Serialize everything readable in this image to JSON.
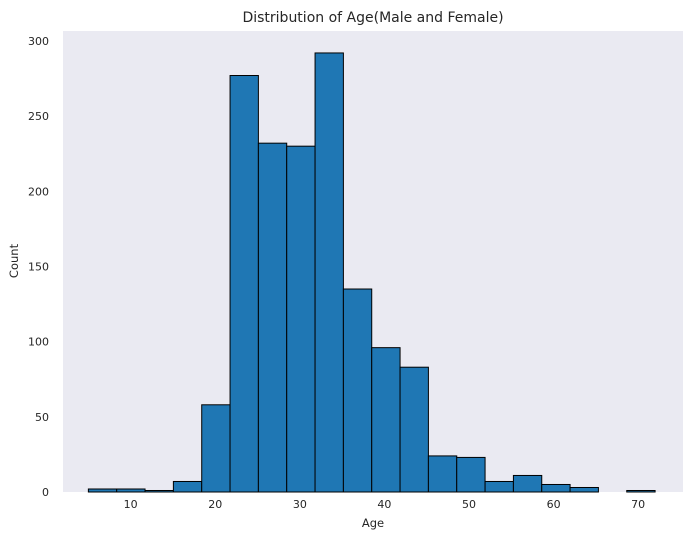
{
  "chart_data": {
    "type": "bar",
    "title": "Distribution of Age(Male and Female)",
    "xlabel": "Age",
    "ylabel": "Count",
    "bins": [
      {
        "start": 5.0,
        "end": 8.35,
        "count": 2
      },
      {
        "start": 8.35,
        "end": 11.7,
        "count": 2
      },
      {
        "start": 11.7,
        "end": 15.05,
        "count": 1
      },
      {
        "start": 15.05,
        "end": 18.4,
        "count": 7
      },
      {
        "start": 18.4,
        "end": 21.75,
        "count": 58
      },
      {
        "start": 21.75,
        "end": 25.1,
        "count": 277
      },
      {
        "start": 25.1,
        "end": 28.45,
        "count": 232
      },
      {
        "start": 28.45,
        "end": 31.8,
        "count": 230
      },
      {
        "start": 31.8,
        "end": 35.15,
        "count": 292
      },
      {
        "start": 35.15,
        "end": 38.5,
        "count": 135
      },
      {
        "start": 38.5,
        "end": 41.85,
        "count": 96
      },
      {
        "start": 41.85,
        "end": 45.2,
        "count": 83
      },
      {
        "start": 45.2,
        "end": 48.55,
        "count": 24
      },
      {
        "start": 48.55,
        "end": 51.9,
        "count": 23
      },
      {
        "start": 51.9,
        "end": 55.25,
        "count": 7
      },
      {
        "start": 55.25,
        "end": 58.6,
        "count": 11
      },
      {
        "start": 58.6,
        "end": 61.95,
        "count": 5
      },
      {
        "start": 61.95,
        "end": 65.3,
        "count": 3
      },
      {
        "start": 65.3,
        "end": 68.65,
        "count": 0
      },
      {
        "start": 68.65,
        "end": 72.0,
        "count": 1
      }
    ],
    "xlim": [
      2.0,
      75.3
    ],
    "ylim": [
      0,
      306.6
    ],
    "xticks": [
      10,
      20,
      30,
      40,
      50,
      60,
      70
    ],
    "yticks": [
      0,
      50,
      100,
      150,
      200,
      250,
      300
    ],
    "grid": false,
    "bar_color": "#1f77b4",
    "edge_color": "#000000",
    "background_color": "#eaeaf2"
  }
}
